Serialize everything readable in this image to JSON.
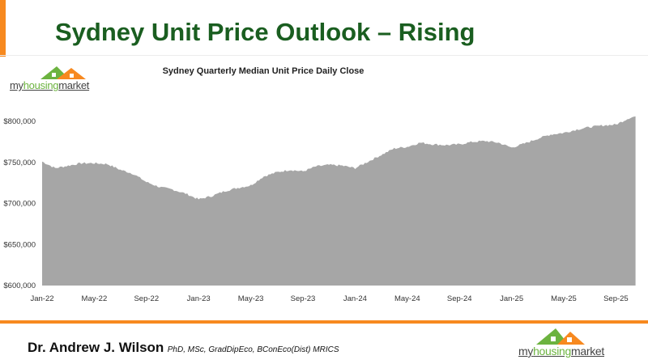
{
  "header": {
    "title": "Sydney Unit Price Outlook – Rising"
  },
  "logo": {
    "prefix": "my",
    "middle": "housing",
    "suffix": "market"
  },
  "footer": {
    "name": "Dr. Andrew J. Wilson",
    "credentials": "PhD, MSc, GradDipEco, BConEco(Dist) MRICS"
  },
  "colors": {
    "accent": "#f7891f",
    "title": "#1a5e20",
    "area": "#a6a6a6"
  },
  "chart_data": {
    "type": "area",
    "title": "Sydney Quarterly Median Unit Price Daily Close",
    "xlabel": "",
    "ylabel": "",
    "ylim": [
      600000,
      810000
    ],
    "yticks": [
      600000,
      650000,
      700000,
      750000,
      800000
    ],
    "ytick_labels": [
      "$600,000",
      "$650,000",
      "$700,000",
      "$750,000",
      "$800,000"
    ],
    "xtick_labels": [
      "Jan-22",
      "May-22",
      "Sep-22",
      "Jan-23",
      "May-23",
      "Sep-23",
      "Jan-24",
      "May-24",
      "Sep-24",
      "Jan-25",
      "May-25",
      "Sep-25"
    ],
    "grid": false,
    "x_months_from_jan22": [
      0,
      1,
      2,
      3,
      4,
      5,
      6,
      7,
      8,
      9,
      10,
      11,
      12,
      13,
      14,
      15,
      16,
      17,
      18,
      19,
      20,
      21,
      22,
      23,
      24,
      25,
      26,
      27,
      28,
      29,
      30,
      31,
      32,
      33,
      34,
      35,
      36,
      37,
      38,
      39,
      40,
      41,
      42,
      43,
      44,
      45,
      45.5
    ],
    "values": [
      751000,
      743000,
      746000,
      749000,
      749000,
      748000,
      741000,
      736000,
      726000,
      720000,
      717000,
      712000,
      705000,
      709000,
      715000,
      719000,
      722000,
      733000,
      738000,
      741000,
      739000,
      745000,
      747000,
      746000,
      743000,
      751000,
      759000,
      767000,
      769000,
      774000,
      772000,
      771000,
      772000,
      775000,
      776000,
      774000,
      768000,
      773000,
      779000,
      784000,
      786000,
      790000,
      793000,
      795000,
      796000,
      804000,
      806000
    ]
  }
}
